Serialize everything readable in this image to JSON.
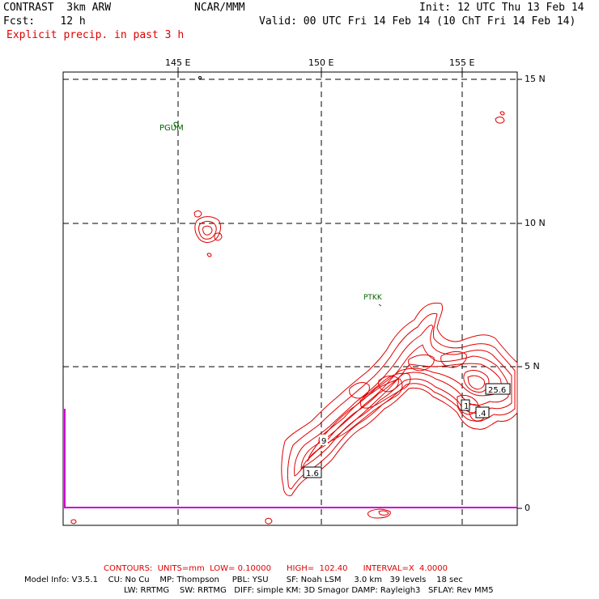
{
  "header": {
    "model": "CONTRAST  3km ARW",
    "org": "NCAR/MMM",
    "init": "Init: 12 UTC Thu 13 Feb 14",
    "fcst": "Fcst:    12 h",
    "valid": "Valid: 00 UTC Fri 14 Feb 14 (10 ChT Fri 14 Feb 14)",
    "field": "Explicit precip. in past 3 h"
  },
  "axes": {
    "lon_labels": [
      "145 E",
      "150 E",
      "155 E"
    ],
    "lat_labels": [
      "15 N",
      "10 N",
      "5 N",
      "0"
    ]
  },
  "stations": [
    "PGUM",
    "PTKK"
  ],
  "contour_labels": [
    "1.6",
    "9",
    "1",
    "25.6",
    ".4"
  ],
  "footer": {
    "contours": "CONTOURS:  UNITS=mm  LOW= 0.10000      HIGH=  102.40      INTERVAL=X  4.0000",
    "model_info": "Model Info: V3.5.1    CU: No Cu    MP: Thompson     PBL: YSU       SF: Noah LSM     3.0 km   39 levels    18 sec",
    "physics": "LW: RRTMG    SW: RRTMG   DIFF: simple KM: 3D Smagor DAMP: Rayleigh3   SFLAY: Rev MM5"
  },
  "colors": {
    "contour": "#e00000",
    "station": "#006400",
    "equator": "#cc00cc",
    "text": "#000000"
  }
}
